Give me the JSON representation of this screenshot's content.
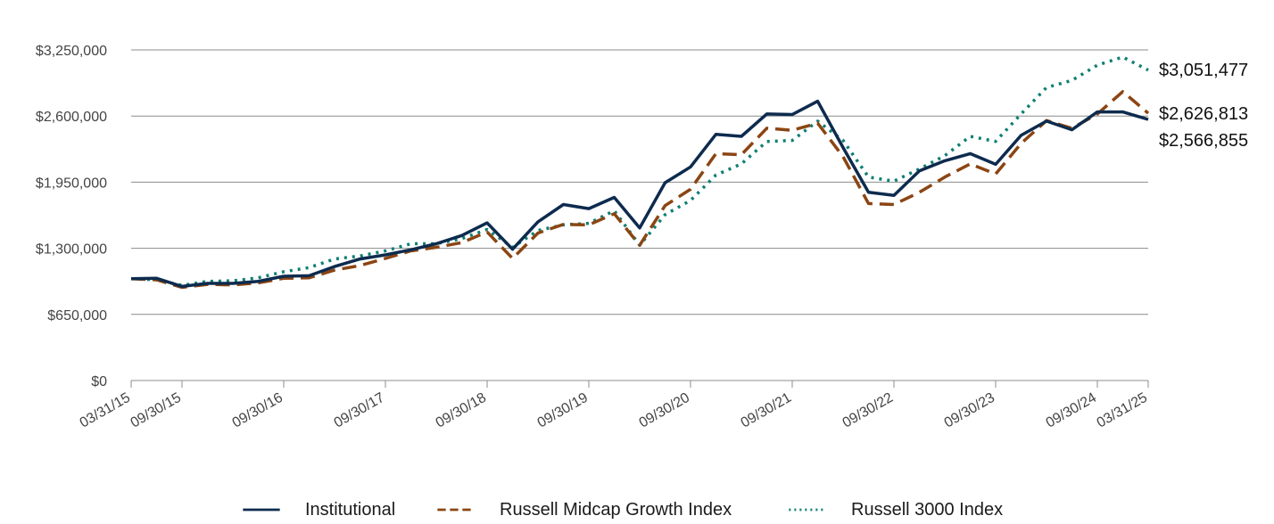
{
  "chart_data": {
    "type": "line",
    "title": "",
    "xlabel": "",
    "ylabel": "",
    "ylim": [
      0,
      3250000
    ],
    "yticks": [
      "$0",
      "$650,000",
      "$1,300,000",
      "$1,950,000",
      "$2,600,000",
      "$3,250,000"
    ],
    "ytick_values": [
      0,
      650000,
      1300000,
      1950000,
      2600000,
      3250000
    ],
    "xticks": [
      "03/31/15",
      "09/30/15",
      "09/30/16",
      "09/30/17",
      "09/30/18",
      "09/30/19",
      "09/30/20",
      "09/30/21",
      "09/30/22",
      "09/30/23",
      "09/30/24",
      "03/31/25"
    ],
    "xtick_positions": [
      0,
      2,
      6,
      10,
      14,
      18,
      22,
      26,
      30,
      34,
      38,
      40
    ],
    "x": [
      "03/31/15",
      "06/30/15",
      "09/30/15",
      "12/31/15",
      "03/31/16",
      "06/30/16",
      "09/30/16",
      "12/31/16",
      "03/31/17",
      "06/30/17",
      "09/30/17",
      "12/31/17",
      "03/31/18",
      "06/30/18",
      "09/30/18",
      "12/31/18",
      "03/31/19",
      "06/30/19",
      "09/30/19",
      "12/31/19",
      "03/31/20",
      "06/30/20",
      "09/30/20",
      "12/31/20",
      "03/31/21",
      "06/30/21",
      "09/30/21",
      "12/31/21",
      "03/31/22",
      "06/30/22",
      "09/30/22",
      "12/31/22",
      "03/31/23",
      "06/30/23",
      "09/30/23",
      "12/31/23",
      "03/31/24",
      "06/30/24",
      "09/30/24",
      "12/31/24",
      "03/31/25"
    ],
    "grid": true,
    "legend_position": "bottom",
    "series": [
      {
        "name": "Institutional",
        "color": "#0d2b4e",
        "style": "solid",
        "end_label": "$2,566,855",
        "values": [
          1000000,
          1005000,
          925000,
          955000,
          955000,
          975000,
          1025000,
          1030000,
          1120000,
          1195000,
          1235000,
          1285000,
          1345000,
          1425000,
          1550000,
          1290000,
          1560000,
          1730000,
          1690000,
          1800000,
          1500000,
          1945000,
          2100000,
          2420000,
          2400000,
          2620000,
          2615000,
          2745000,
          2290000,
          1850000,
          1820000,
          2060000,
          2160000,
          2230000,
          2125000,
          2410000,
          2550000,
          2465000,
          2640000,
          2640000,
          2566855
        ]
      },
      {
        "name": "Russell Midcap Growth Index",
        "color": "#8b4513",
        "style": "dashed",
        "end_label": "$2,626,813",
        "values": [
          1000000,
          990000,
          915000,
          945000,
          940000,
          960000,
          1005000,
          1010000,
          1085000,
          1130000,
          1200000,
          1275000,
          1310000,
          1355000,
          1460000,
          1200000,
          1450000,
          1535000,
          1530000,
          1640000,
          1330000,
          1720000,
          1880000,
          2230000,
          2220000,
          2480000,
          2460000,
          2530000,
          2200000,
          1740000,
          1730000,
          1850000,
          2000000,
          2130000,
          2030000,
          2330000,
          2555000,
          2480000,
          2620000,
          2840000,
          2626813
        ]
      },
      {
        "name": "Russell 3000 Index",
        "color": "#0e7f74",
        "style": "dotted",
        "end_label": "$3,051,477",
        "values": [
          1000000,
          990000,
          935000,
          975000,
          980000,
          1010000,
          1070000,
          1110000,
          1195000,
          1225000,
          1275000,
          1345000,
          1345000,
          1395000,
          1485000,
          1310000,
          1475000,
          1530000,
          1545000,
          1670000,
          1330000,
          1630000,
          1770000,
          2020000,
          2130000,
          2350000,
          2360000,
          2550000,
          2360000,
          2000000,
          1960000,
          2080000,
          2210000,
          2400000,
          2350000,
          2620000,
          2880000,
          2950000,
          3100000,
          3180000,
          3051477
        ]
      }
    ]
  }
}
